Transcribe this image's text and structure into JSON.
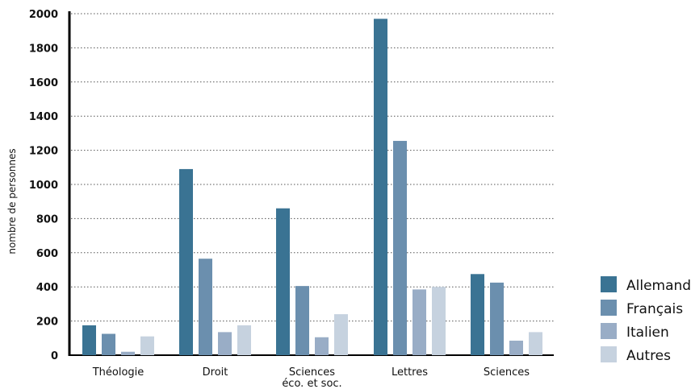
{
  "chart_data": {
    "type": "bar",
    "title": "",
    "xlabel": "",
    "ylabel": "nombre de personnes",
    "ylim": [
      0,
      2000
    ],
    "yticks": [
      0,
      200,
      400,
      600,
      800,
      1000,
      1200,
      1400,
      1600,
      1800,
      2000
    ],
    "grid": "horizontal-dotted",
    "legend_position": "right-bottom",
    "categories": [
      [
        "Théologie"
      ],
      [
        "Droit"
      ],
      [
        "Sciences",
        "éco. et soc."
      ],
      [
        "Lettres"
      ],
      [
        "Sciences"
      ]
    ],
    "series": [
      {
        "name": "Allemand",
        "color": "#3a7393",
        "values": [
          175,
          1090,
          860,
          1970,
          475
        ]
      },
      {
        "name": "Français",
        "color": "#6b8fae",
        "values": [
          125,
          565,
          405,
          1255,
          425
        ]
      },
      {
        "name": "Italien",
        "color": "#99adc6",
        "values": [
          20,
          135,
          105,
          385,
          85
        ]
      },
      {
        "name": "Autres",
        "color": "#c6d2df",
        "values": [
          110,
          175,
          240,
          400,
          135
        ]
      }
    ]
  }
}
